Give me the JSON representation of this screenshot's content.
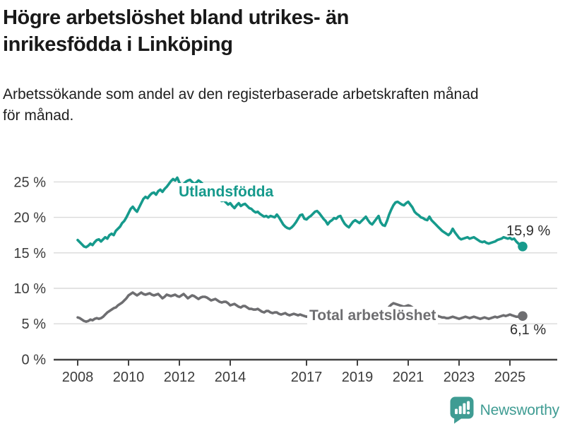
{
  "header": {
    "title_line1": "Högre arbetslöshet bland utrikes- än",
    "title_line2": "inrikesfödda i Linköping",
    "subtitle_line1": "Arbetssökande som andel av den registerbaserade arbetskraften månad",
    "subtitle_line2": "för månad."
  },
  "chart_data": {
    "type": "line",
    "title": "Högre arbetslöshet bland utrikes- än inrikesfödda i Linköping",
    "subtitle": "Arbetssökande som andel av den registerbaserade arbetskraften månad för månad.",
    "unit": "%",
    "x_start": 2008,
    "x_end": 2025.5,
    "points_per_year": 12,
    "ylim": [
      0,
      27
    ],
    "grid": "horizontal",
    "legend": "inline-labels",
    "y_ticks": [
      {
        "value": 0,
        "label": "0 %"
      },
      {
        "value": 5,
        "label": "5 %"
      },
      {
        "value": 10,
        "label": "10 %"
      },
      {
        "value": 15,
        "label": "15 %"
      },
      {
        "value": 20,
        "label": "20 %"
      },
      {
        "value": 25,
        "label": "25 %"
      }
    ],
    "x_ticks": [
      {
        "value": 2008,
        "label": "2008"
      },
      {
        "value": 2010,
        "label": "2010"
      },
      {
        "value": 2012,
        "label": "2012"
      },
      {
        "value": 2014,
        "label": "2014"
      },
      {
        "value": 2017,
        "label": "2017"
      },
      {
        "value": 2019,
        "label": "2019"
      },
      {
        "value": 2021,
        "label": "2021"
      },
      {
        "value": 2023,
        "label": "2023"
      },
      {
        "value": 2025,
        "label": "2025"
      }
    ],
    "series": [
      {
        "name": "Utlandsfödda",
        "color": "#169a8c",
        "end_label": "15,9 %",
        "end_value": 15.9,
        "values": [
          16.8,
          16.5,
          16.2,
          15.9,
          15.8,
          16.0,
          16.3,
          16.1,
          16.5,
          16.8,
          16.9,
          16.6,
          16.9,
          17.2,
          17.0,
          17.5,
          17.7,
          17.5,
          18.1,
          18.4,
          18.7,
          19.2,
          19.5,
          20.0,
          20.6,
          21.2,
          21.5,
          21.1,
          20.8,
          21.4,
          22.0,
          22.6,
          22.9,
          22.7,
          23.1,
          23.4,
          23.5,
          23.2,
          23.7,
          23.9,
          23.6,
          24.0,
          24.3,
          24.7,
          25.1,
          25.4,
          25.2,
          25.6,
          24.9,
          24.4,
          24.7,
          25.0,
          25.2,
          25.3,
          25.0,
          24.7,
          24.9,
          25.2,
          25.0,
          24.7,
          24.5,
          24.2,
          23.9,
          23.6,
          23.3,
          23.0,
          22.7,
          22.5,
          22.3,
          22.4,
          22.1,
          21.8,
          22.0,
          21.6,
          21.3,
          21.7,
          22.0,
          21.6,
          21.8,
          21.9,
          21.6,
          21.3,
          21.2,
          20.9,
          20.7,
          20.8,
          20.5,
          20.3,
          20.1,
          20.2,
          20.0,
          20.2,
          20.1,
          20.0,
          20.4,
          20.0,
          19.5,
          19.0,
          18.7,
          18.5,
          18.4,
          18.6,
          18.9,
          19.3,
          19.8,
          20.3,
          20.4,
          19.8,
          19.7,
          20.0,
          20.2,
          20.5,
          20.8,
          20.9,
          20.6,
          20.2,
          19.8,
          19.5,
          19.0,
          19.4,
          19.6,
          19.9,
          19.8,
          20.1,
          20.2,
          19.6,
          19.1,
          18.8,
          18.6,
          19.0,
          19.4,
          19.6,
          19.4,
          19.2,
          19.5,
          19.8,
          20.1,
          19.6,
          19.2,
          19.0,
          19.4,
          19.8,
          20.2,
          19.3,
          18.9,
          18.8,
          19.5,
          20.4,
          21.1,
          21.7,
          22.1,
          22.2,
          22.0,
          21.8,
          21.7,
          22.0,
          22.2,
          21.8,
          21.4,
          20.8,
          20.5,
          20.3,
          20.0,
          19.9,
          19.7,
          19.6,
          20.1,
          19.6,
          19.3,
          19.0,
          18.7,
          18.4,
          18.1,
          17.9,
          17.7,
          17.5,
          17.8,
          18.4,
          17.9,
          17.5,
          17.1,
          16.9,
          17.0,
          17.1,
          17.2,
          17.0,
          17.1,
          17.2,
          17.0,
          16.8,
          16.6,
          16.5,
          16.6,
          16.4,
          16.3,
          16.4,
          16.5,
          16.6,
          16.8,
          16.9,
          17.0,
          17.2,
          17.1,
          17.0,
          17.1,
          16.9,
          17.0,
          16.6,
          16.3,
          16.1,
          15.9
        ]
      },
      {
        "name": "Total arbetslöshet",
        "color": "#6e6e71",
        "end_label": "6,1 %",
        "end_value": 6.1,
        "values": [
          5.9,
          5.8,
          5.6,
          5.4,
          5.3,
          5.4,
          5.6,
          5.5,
          5.7,
          5.8,
          5.7,
          5.8,
          6.0,
          6.3,
          6.6,
          6.8,
          7.0,
          7.2,
          7.3,
          7.6,
          7.8,
          8.0,
          8.3,
          8.6,
          9.0,
          9.2,
          9.4,
          9.2,
          9.0,
          9.2,
          9.4,
          9.2,
          9.1,
          9.2,
          9.3,
          9.1,
          9.0,
          9.1,
          9.2,
          8.9,
          8.6,
          8.8,
          9.1,
          9.0,
          8.9,
          9.0,
          9.1,
          8.9,
          8.8,
          9.0,
          9.2,
          8.9,
          8.6,
          8.8,
          9.0,
          8.9,
          8.7,
          8.5,
          8.7,
          8.8,
          8.8,
          8.7,
          8.5,
          8.3,
          8.4,
          8.5,
          8.3,
          8.1,
          8.0,
          8.1,
          8.1,
          7.9,
          7.6,
          7.7,
          7.8,
          7.6,
          7.4,
          7.3,
          7.5,
          7.5,
          7.3,
          7.1,
          7.1,
          7.0,
          7.0,
          7.1,
          6.9,
          6.7,
          6.6,
          6.8,
          6.8,
          6.6,
          6.5,
          6.6,
          6.6,
          6.4,
          6.3,
          6.4,
          6.5,
          6.3,
          6.2,
          6.3,
          6.4,
          6.3,
          6.2,
          6.3,
          6.2,
          6.1,
          6.0,
          6.1,
          6.2,
          6.3,
          6.2,
          6.1,
          6.0,
          5.9,
          6.0,
          6.1,
          6.0,
          6.1,
          6.0,
          6.1,
          6.0,
          5.9,
          5.8,
          5.9,
          6.0,
          5.9,
          5.8,
          5.9,
          6.0,
          6.0,
          6.1,
          6.0,
          6.1,
          6.2,
          6.1,
          6.2,
          6.3,
          6.2,
          6.3,
          6.4,
          6.5,
          6.4,
          6.4,
          6.5,
          6.9,
          7.4,
          7.7,
          7.9,
          7.8,
          7.7,
          7.6,
          7.5,
          7.4,
          7.5,
          7.6,
          7.5,
          7.3,
          7.1,
          6.9,
          6.8,
          6.7,
          6.6,
          6.5,
          6.4,
          6.5,
          6.4,
          6.3,
          6.2,
          6.1,
          6.0,
          5.9,
          5.9,
          5.8,
          5.8,
          5.9,
          6.0,
          5.9,
          5.8,
          5.7,
          5.8,
          5.9,
          6.0,
          5.9,
          5.8,
          5.9,
          6.0,
          5.9,
          5.8,
          5.7,
          5.8,
          5.9,
          5.8,
          5.7,
          5.8,
          5.9,
          6.0,
          5.9,
          6.0,
          6.1,
          6.2,
          6.1,
          6.2,
          6.3,
          6.2,
          6.1,
          6.0,
          6.0,
          6.1,
          6.1
        ]
      }
    ]
  },
  "footer": {
    "brand": "Newsworthy",
    "brand_color": "#3f9c93"
  }
}
